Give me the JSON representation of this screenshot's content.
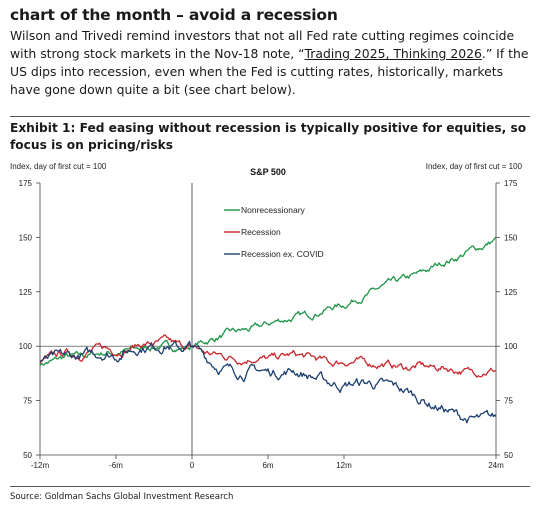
{
  "headline": "chart of the month – avoid a recession",
  "body": {
    "part1": "Wilson and Trivedi remind investors that not all Fed rate cutting regimes coincide with strong stock markets in the Nov-18 note, “",
    "link": "Trading 2025, Thinking 2026",
    "part2": ".”  If the US dips into recession, even when the Fed is cutting rates, historically, markets have gone down quite a bit (see chart below)."
  },
  "exhibit_title": "Exhibit 1: Fed easing without recession is typically positive for equities, so focus is on pricing/risks",
  "source": "Source: Goldman Sachs Global Investment Research",
  "colors": {
    "nonrecessionary": "#1e9447",
    "recession": "#c8262c",
    "recession_ex_covid": "#1d3f6e"
  },
  "chart_data": {
    "type": "line",
    "title": "S&P 500",
    "ylabel_left": "Index, day of first cut = 100",
    "ylabel_right": "Index, day of first cut = 100",
    "xlabel": "",
    "x_unit": "months relative to first cut",
    "xlim": [
      -12,
      24
    ],
    "ylim": [
      50,
      175
    ],
    "x_ticks": [
      {
        "value": -12,
        "label": "-12m"
      },
      {
        "value": -6,
        "label": "-6m"
      },
      {
        "value": 0,
        "label": "0"
      },
      {
        "value": 6,
        "label": "6m"
      },
      {
        "value": 12,
        "label": "12m"
      },
      {
        "value": 24,
        "label": "24m"
      }
    ],
    "y_ticks": [
      50,
      75,
      100,
      125,
      150,
      175
    ],
    "reference_lines": [
      {
        "axis": "x",
        "value": 0
      },
      {
        "axis": "y",
        "value": 100
      }
    ],
    "legend_position": "upper-center",
    "series": [
      {
        "name": "Nonrecessionary",
        "color_key": "nonrecessionary",
        "x": [
          -12,
          -11,
          -10,
          -9,
          -8,
          -7,
          -6,
          -5,
          -4,
          -3,
          -2,
          -1,
          0,
          1,
          2,
          3,
          4,
          5,
          6,
          7,
          8,
          9,
          10,
          11,
          12,
          13,
          14,
          15,
          16,
          17,
          18,
          19,
          20,
          21,
          22,
          23,
          24
        ],
        "y": [
          92,
          93,
          95,
          95,
          96,
          97,
          97,
          98,
          99,
          100,
          100,
          99,
          100,
          102,
          104,
          106,
          107,
          108,
          110,
          112,
          113,
          114,
          116,
          118,
          119,
          122,
          124,
          127,
          129,
          131,
          133,
          136,
          139,
          141,
          144,
          146,
          149
        ]
      },
      {
        "name": "Recession",
        "color_key": "recession",
        "x": [
          -12,
          -11,
          -10,
          -9,
          -8,
          -7,
          -6,
          -5,
          -4,
          -3,
          -2,
          -1,
          0,
          1,
          2,
          3,
          4,
          5,
          6,
          7,
          8,
          9,
          10,
          11,
          12,
          13,
          14,
          15,
          16,
          17,
          18,
          19,
          20,
          21,
          22,
          23,
          24
        ],
        "y": [
          93,
          95,
          97,
          96,
          98,
          99,
          98,
          99,
          101,
          101,
          102,
          100,
          100,
          97,
          96,
          95,
          94,
          95,
          94,
          95,
          96,
          95,
          94,
          92,
          93,
          93,
          92,
          92,
          91,
          90,
          91,
          90,
          90,
          89,
          88,
          89,
          89
        ]
      },
      {
        "name": "Recession ex. COVID",
        "color_key": "recession_ex_covid",
        "x": [
          -12,
          -11,
          -10,
          -9,
          -8,
          -7,
          -6,
          -5,
          -4,
          -3,
          -2,
          -1,
          0,
          1,
          2,
          3,
          4,
          5,
          6,
          7,
          8,
          9,
          10,
          11,
          12,
          13,
          14,
          15,
          16,
          17,
          18,
          19,
          20,
          21,
          22,
          23,
          24
        ],
        "y": [
          93,
          94,
          95,
          95,
          96,
          97,
          96,
          98,
          100,
          100,
          101,
          99,
          100,
          95,
          91,
          89,
          88,
          89,
          88,
          88,
          89,
          87,
          85,
          83,
          82,
          83,
          83,
          82,
          81,
          79,
          76,
          73,
          71,
          68,
          66,
          66,
          67
        ]
      }
    ]
  }
}
